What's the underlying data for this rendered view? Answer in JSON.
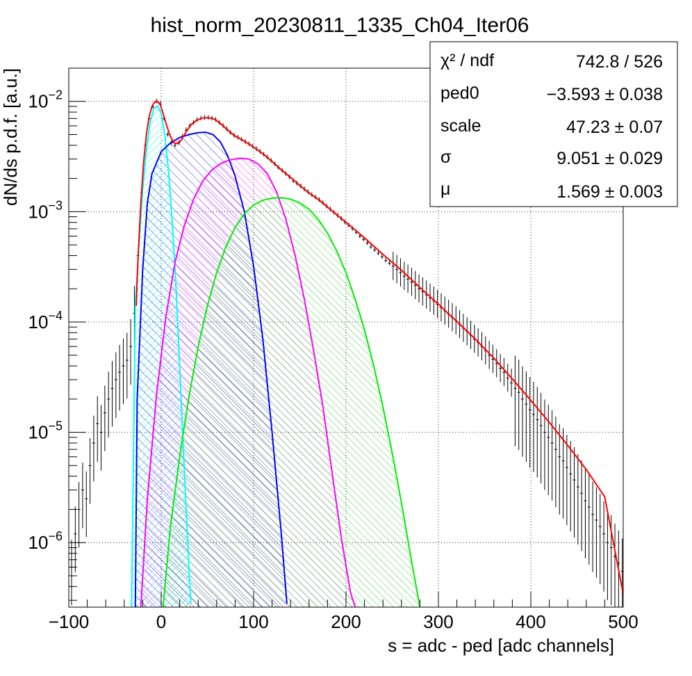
{
  "chart_data": {
    "type": "histogram-with-fit",
    "title": "hist_norm_20230811_1335_Ch04_Iter06",
    "xlabel": "s = adc - ped [adc channels]",
    "ylabel": "dN/ds p.d.f. [a.u.]",
    "xlim": [
      -100,
      500
    ],
    "ylim": [
      2.6e-07,
      0.02
    ],
    "yscale": "log",
    "grid": true,
    "x_ticks": [
      "−100",
      "0",
      "100",
      "200",
      "300",
      "400",
      "500"
    ],
    "y_ticks": [
      {
        "base": "10",
        "exp": "−6",
        "value": 1e-06
      },
      {
        "base": "10",
        "exp": "−5",
        "value": 1e-05
      },
      {
        "base": "10",
        "exp": "−4",
        "value": 0.0001
      },
      {
        "base": "10",
        "exp": "−3",
        "value": 0.001
      },
      {
        "base": "10",
        "exp": "−2",
        "value": 0.01
      }
    ],
    "stats_box": {
      "placement": "top-right",
      "rows": [
        {
          "label": "χ² / ndf",
          "value": "742.8 / 526"
        },
        {
          "label": "ped0",
          "value": "−3.593 ± 0.038"
        },
        {
          "label": "scale",
          "value": "47.23 ± 0.07"
        },
        {
          "label": "σ",
          "value": "9.051 ± 0.029"
        },
        {
          "label": "μ",
          "value": "1.569 ± 0.003"
        }
      ]
    },
    "data_histogram": {
      "color": "#000000",
      "points": [
        [
          -97,
          6e-07
        ],
        [
          -93,
          1.2e-06
        ],
        [
          -89,
          2e-06
        ],
        [
          -85,
          3e-06
        ],
        [
          -81,
          2.5e-06
        ],
        [
          -77,
          5e-06
        ],
        [
          -73,
          8e-06
        ],
        [
          -69,
          1.2e-05
        ],
        [
          -65,
          1e-05
        ],
        [
          -61,
          1.5e-05
        ],
        [
          -57,
          2e-05
        ],
        [
          -53,
          2.5e-05
        ],
        [
          -49,
          3e-05
        ],
        [
          -45,
          3.5e-05
        ],
        [
          -41,
          4e-05
        ],
        [
          -37,
          4.5e-05
        ],
        [
          -33,
          6e-05
        ],
        [
          -29,
          0.00012
        ],
        [
          -25,
          0.0004
        ],
        [
          -21,
          0.0015
        ],
        [
          -17,
          0.004
        ],
        [
          -13,
          0.007
        ],
        [
          -9,
          0.009
        ],
        [
          -5,
          0.01
        ],
        [
          -1,
          0.0095
        ],
        [
          3,
          0.007
        ],
        [
          7,
          0.005
        ],
        [
          11,
          0.0042
        ],
        [
          15,
          0.004
        ],
        [
          19,
          0.0042
        ],
        [
          23,
          0.0048
        ],
        [
          27,
          0.0055
        ],
        [
          31,
          0.006
        ],
        [
          35,
          0.0064
        ],
        [
          39,
          0.0068
        ],
        [
          43,
          0.007
        ],
        [
          47,
          0.0071
        ],
        [
          51,
          0.0071
        ],
        [
          55,
          0.007
        ],
        [
          59,
          0.0068
        ],
        [
          63,
          0.0064
        ],
        [
          67,
          0.006
        ],
        [
          71,
          0.0056
        ],
        [
          75,
          0.0052
        ],
        [
          79,
          0.0049
        ],
        [
          83,
          0.0047
        ],
        [
          87,
          0.0045
        ],
        [
          91,
          0.0043
        ],
        [
          95,
          0.0041
        ],
        [
          99,
          0.0039
        ],
        [
          103,
          0.0037
        ],
        [
          107,
          0.0035
        ],
        [
          111,
          0.0033
        ],
        [
          115,
          0.0031
        ],
        [
          119,
          0.0029
        ],
        [
          123,
          0.0027
        ],
        [
          127,
          0.0025
        ],
        [
          131,
          0.00235
        ],
        [
          135,
          0.0022
        ],
        [
          139,
          0.00205
        ],
        [
          143,
          0.0019
        ],
        [
          147,
          0.0018
        ],
        [
          151,
          0.0017
        ],
        [
          155,
          0.0016
        ],
        [
          159,
          0.0015
        ],
        [
          163,
          0.00142
        ],
        [
          167,
          0.00135
        ],
        [
          171,
          0.00128
        ],
        [
          175,
          0.0012
        ],
        [
          179,
          0.00112
        ],
        [
          183,
          0.00105
        ],
        [
          187,
          0.00098
        ],
        [
          191,
          0.00092
        ],
        [
          195,
          0.00086
        ],
        [
          199,
          0.0008
        ],
        [
          203,
          0.00075
        ],
        [
          207,
          0.0007
        ],
        [
          211,
          0.00065
        ],
        [
          215,
          0.0006
        ],
        [
          219,
          0.00056
        ],
        [
          223,
          0.00052
        ],
        [
          227,
          0.00048
        ],
        [
          231,
          0.00045
        ],
        [
          235,
          0.00042
        ],
        [
          239,
          0.00039
        ],
        [
          243,
          0.00036
        ],
        [
          247,
          0.00034
        ],
        [
          251,
          0.00032
        ],
        [
          255,
          0.0003
        ],
        [
          259,
          0.00028
        ],
        [
          263,
          0.00026
        ],
        [
          267,
          0.000245
        ],
        [
          271,
          0.00023
        ],
        [
          275,
          0.000215
        ],
        [
          279,
          0.0002
        ],
        [
          283,
          0.000188
        ],
        [
          287,
          0.000176
        ],
        [
          291,
          0.000165
        ],
        [
          295,
          0.000155
        ],
        [
          299,
          0.000145
        ],
        [
          303,
          0.000135
        ],
        [
          307,
          0.000126
        ],
        [
          311,
          0.000118
        ],
        [
          315,
          0.00011
        ],
        [
          319,
          0.000103
        ],
        [
          323,
          9.5e-05
        ],
        [
          327,
          8.8e-05
        ],
        [
          331,
          8.2e-05
        ],
        [
          335,
          7.6e-05
        ],
        [
          339,
          7e-05
        ],
        [
          343,
          6.5e-05
        ],
        [
          347,
          6e-05
        ],
        [
          351,
          5.5e-05
        ],
        [
          355,
          5e-05
        ],
        [
          359,
          4.6e-05
        ],
        [
          363,
          4.2e-05
        ],
        [
          367,
          3.8e-05
        ],
        [
          371,
          3.5e-05
        ],
        [
          375,
          3.1e-05
        ],
        [
          379,
          2.8e-05
        ],
        [
          383,
          2.5e-05
        ],
        [
          387,
          2.3e-05
        ],
        [
          391,
          2e-05
        ],
        [
          395,
          1.8e-05
        ],
        [
          399,
          1.6e-05
        ],
        [
          403,
          1.45e-05
        ],
        [
          407,
          1.3e-05
        ],
        [
          411,
          1.15e-05
        ],
        [
          415,
          1e-05
        ],
        [
          419,
          9e-06
        ],
        [
          423,
          8e-06
        ],
        [
          427,
          7e-06
        ],
        [
          431,
          6e-06
        ],
        [
          435,
          5.5e-06
        ],
        [
          439,
          4.8e-06
        ],
        [
          443,
          4.2e-06
        ],
        [
          447,
          3.7e-06
        ],
        [
          451,
          3.2e-06
        ],
        [
          455,
          2.8e-06
        ],
        [
          459,
          2.4e-06
        ],
        [
          463,
          2.1e-06
        ],
        [
          467,
          1.8e-06
        ],
        [
          471,
          1.6e-06
        ],
        [
          475,
          1.4e-06
        ],
        [
          479,
          1.2e-06
        ],
        [
          483,
          1e-06
        ],
        [
          487,
          9e-07
        ],
        [
          491,
          7.5e-07
        ],
        [
          495,
          6.5e-07
        ],
        [
          499,
          5.5e-07
        ]
      ]
    },
    "fit_total": {
      "color": "#ff0000",
      "points": [
        [
          -27,
          0.00014
        ],
        [
          -25,
          0.0004
        ],
        [
          -22,
          0.0012
        ],
        [
          -19,
          0.0028
        ],
        [
          -16,
          0.005
        ],
        [
          -13,
          0.0073
        ],
        [
          -10,
          0.009
        ],
        [
          -7,
          0.0099
        ],
        [
          -4,
          0.01
        ],
        [
          -1,
          0.0093
        ],
        [
          2,
          0.0078
        ],
        [
          6,
          0.006
        ],
        [
          10,
          0.0048
        ],
        [
          14,
          0.0042
        ],
        [
          18,
          0.00415
        ],
        [
          22,
          0.0045
        ],
        [
          27,
          0.0053
        ],
        [
          32,
          0.0061
        ],
        [
          38,
          0.0067
        ],
        [
          44,
          0.00705
        ],
        [
          50,
          0.0071
        ],
        [
          56,
          0.007
        ],
        [
          62,
          0.0065
        ],
        [
          68,
          0.0059
        ],
        [
          74,
          0.0053
        ],
        [
          80,
          0.00485
        ],
        [
          88,
          0.00445
        ],
        [
          96,
          0.00405
        ],
        [
          104,
          0.00365
        ],
        [
          112,
          0.00325
        ],
        [
          120,
          0.00285
        ],
        [
          130,
          0.0024
        ],
        [
          140,
          0.00205
        ],
        [
          150,
          0.00173
        ],
        [
          160,
          0.00148
        ],
        [
          170,
          0.00129
        ],
        [
          180,
          0.0011
        ],
        [
          190,
          0.00094
        ],
        [
          200,
          0.0008
        ],
        [
          220,
          0.00058
        ],
        [
          240,
          0.00041
        ],
        [
          260,
          0.000295
        ],
        [
          280,
          0.000205
        ],
        [
          300,
          0.000145
        ],
        [
          320,
          0.000101
        ],
        [
          340,
          7e-05
        ],
        [
          360,
          4.7e-05
        ],
        [
          380,
          3.05e-05
        ],
        [
          400,
          1.95e-05
        ],
        [
          420,
          1.23e-05
        ],
        [
          440,
          7.6e-06
        ],
        [
          460,
          4.6e-06
        ],
        [
          480,
          2.6e-06
        ],
        [
          500,
          3.4e-07
        ]
      ]
    },
    "components": [
      {
        "name": "",
        "color": "#00ffff",
        "fill": "diag-cyan",
        "points": [
          [
            -32,
            2.6e-07
          ],
          [
            -28,
            0.00015
          ],
          [
            -24,
            0.0005
          ],
          [
            -20,
            0.0016
          ],
          [
            -16,
            0.0036
          ],
          [
            -12,
            0.0064
          ],
          [
            -8,
            0.0086
          ],
          [
            -4,
            0.0091
          ],
          [
            0,
            0.0078
          ],
          [
            4,
            0.005
          ],
          [
            8,
            0.0023
          ],
          [
            12,
            0.0008
          ],
          [
            16,
            0.00021
          ],
          [
            20,
            4e-05
          ],
          [
            26,
            3e-06
          ],
          [
            32,
            2.8e-07
          ]
        ]
      },
      {
        "name": "",
        "color": "#0000ff",
        "fill": "cross-blue",
        "points": [
          [
            -28,
            2.6e-07
          ],
          [
            -26,
            2e-05
          ],
          [
            -20,
            0.0003
          ],
          [
            -15,
            0.0012
          ],
          [
            -10,
            0.0022
          ],
          [
            0,
            0.0035
          ],
          [
            10,
            0.0042
          ],
          [
            20,
            0.0047
          ],
          [
            30,
            0.005
          ],
          [
            40,
            0.0052
          ],
          [
            48,
            0.00525
          ],
          [
            56,
            0.005
          ],
          [
            64,
            0.0043
          ],
          [
            72,
            0.0032
          ],
          [
            80,
            0.0021
          ],
          [
            90,
            0.001
          ],
          [
            100,
            0.00032
          ],
          [
            110,
            7e-05
          ],
          [
            120,
            1e-05
          ],
          [
            130,
            1.2e-06
          ],
          [
            136,
            2.8e-07
          ]
        ]
      },
      {
        "name": "",
        "color": "#ff00ff",
        "fill": "diag-magenta",
        "points": [
          [
            -22,
            2.6e-07
          ],
          [
            -15,
            2.5e-06
          ],
          [
            -5,
            2.2e-05
          ],
          [
            5,
            0.00011
          ],
          [
            15,
            0.00035
          ],
          [
            25,
            0.00075
          ],
          [
            35,
            0.0013
          ],
          [
            45,
            0.0019
          ],
          [
            55,
            0.0024
          ],
          [
            65,
            0.00275
          ],
          [
            75,
            0.00295
          ],
          [
            85,
            0.00305
          ],
          [
            95,
            0.003
          ],
          [
            105,
            0.0027
          ],
          [
            115,
            0.0022
          ],
          [
            125,
            0.0015
          ],
          [
            135,
            0.00085
          ],
          [
            145,
            0.0004
          ],
          [
            155,
            0.00016
          ],
          [
            165,
            5.5e-05
          ],
          [
            175,
            1.7e-05
          ],
          [
            185,
            4.3e-06
          ],
          [
            195,
            1.1e-06
          ],
          [
            205,
            3.5e-07
          ],
          [
            210,
            2.6e-07
          ]
        ]
      },
      {
        "name": "",
        "color": "#00ee00",
        "fill": "diag-green",
        "points": [
          [
            2,
            2.6e-07
          ],
          [
            10,
            1.4e-06
          ],
          [
            20,
            6e-06
          ],
          [
            30,
            2.1e-05
          ],
          [
            40,
            6e-05
          ],
          [
            50,
            0.00014
          ],
          [
            60,
            0.00028
          ],
          [
            70,
            0.00048
          ],
          [
            80,
            0.00072
          ],
          [
            90,
            0.00096
          ],
          [
            100,
            0.00115
          ],
          [
            110,
            0.00127
          ],
          [
            120,
            0.00133
          ],
          [
            130,
            0.00134
          ],
          [
            140,
            0.0013
          ],
          [
            150,
            0.0012
          ],
          [
            160,
            0.00105
          ],
          [
            170,
            0.00085
          ],
          [
            180,
            0.00064
          ],
          [
            190,
            0.00044
          ],
          [
            200,
            0.00028
          ],
          [
            210,
            0.00016
          ],
          [
            220,
            8.5e-05
          ],
          [
            230,
            4e-05
          ],
          [
            240,
            1.7e-05
          ],
          [
            250,
            6.5e-06
          ],
          [
            260,
            2.3e-06
          ],
          [
            270,
            7.5e-07
          ],
          [
            280,
            2.6e-07
          ]
        ]
      }
    ]
  }
}
